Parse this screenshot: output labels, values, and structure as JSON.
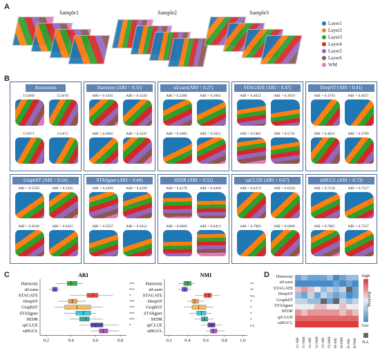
{
  "panel_a": {
    "label": "A",
    "samples": [
      "Sample1",
      "Sample2",
      "Sample3"
    ],
    "legend": [
      {
        "name": "Layer1",
        "color": "#1f77b4"
      },
      {
        "name": "Layer2",
        "color": "#ff7f0e"
      },
      {
        "name": "Layer3",
        "color": "#2ca02c"
      },
      {
        "name": "Layer4",
        "color": "#d62728"
      },
      {
        "name": "Layer5",
        "color": "#9467bd"
      },
      {
        "name": "Layer6",
        "color": "#8c564b"
      },
      {
        "name": "WM",
        "color": "#e377c2"
      }
    ]
  },
  "panel_b": {
    "label": "B",
    "methods": [
      {
        "title": "Annotation",
        "values": [
          "151669",
          "151670",
          "151671",
          "151672"
        ]
      },
      {
        "title": "Harmony (ARI = 0.35)",
        "values": [
          "ARI = 0.3435",
          "ARI = 0.3249",
          "ARI = 0.4005",
          "ARI = 0.3247"
        ]
      },
      {
        "title": "stLearn(ARI = 0.27)",
        "values": [
          "ARI = 0.2280",
          "ARI = 0.3002",
          "ARI = 0.2682",
          "ARI = 0.2651"
        ]
      },
      {
        "title": "STAGATE (ARI = 0.47)",
        "values": [
          "ARI = 0.4022",
          "ARI = 0.3919",
          "ARI = 0.5481",
          "ARI = 0.5732"
        ]
      },
      {
        "title": "DeepST (ARI = 0.41)",
        "values": [
          "ARI = 0.3793",
          "ARI = 0.4037",
          "ARI = 0.4831",
          "ARI = 0.3789"
        ]
      },
      {
        "title": "GraphST (ARI = 0.54)",
        "values": [
          "ARI = 0.5520",
          "ARI = 0.5435",
          "ARI = 0.6338",
          "ARI = 0.4361"
        ]
      },
      {
        "title": "STAligner (ARI = 0.49)",
        "values": [
          "ARI = 0.4289",
          "ARI = 0.4299",
          "ARI = 0.5567",
          "ARI = 0.5614"
        ]
      },
      {
        "title": "SEDR (ARI = 0.52)",
        "values": [
          "ARI = 0.4178",
          "ARI = 0.4309",
          "ARI = 0.6009",
          "ARI = 0.6413"
        ]
      },
      {
        "title": "spCLUE (ARI = 0.67)",
        "values": [
          "ARI = 0.6474",
          "ARI = 0.6326",
          "ARI = 0.7885",
          "ARI = 0.6689"
        ]
      },
      {
        "title": "stHGCL (ARI = 0.73)",
        "values": [
          "ARI = 0.7158",
          "ARI = 0.7357",
          "ARI = 0.7885",
          "ARI = 0.7357"
        ]
      }
    ]
  },
  "chart_data": [
    {
      "type": "box",
      "panel": "C",
      "title": "ARI",
      "categories": [
        "Harmony",
        "stLearn",
        "STAGATE",
        "DeepST",
        "GraphST",
        "STAligner",
        "SEDR",
        "spCLUE",
        "stHGCL"
      ],
      "colors": [
        "#3aaa4a",
        "#5b52d6",
        "#e8453c",
        "#e8a05a",
        "#f0c060",
        "#3ec6d6",
        "#3aa89a",
        "#5d3fa8",
        "#b44fc4"
      ],
      "boxes": [
        {
          "q1": 0.37,
          "median": 0.4,
          "q3": 0.45,
          "min": 0.28,
          "max": 0.5
        },
        {
          "q1": 0.25,
          "median": 0.27,
          "q3": 0.29,
          "min": 0.22,
          "max": 0.31
        },
        {
          "q1": 0.53,
          "median": 0.58,
          "q3": 0.62,
          "min": 0.39,
          "max": 0.74
        },
        {
          "q1": 0.38,
          "median": 0.41,
          "q3": 0.45,
          "min": 0.3,
          "max": 0.52
        },
        {
          "q1": 0.35,
          "median": 0.45,
          "q3": 0.56,
          "min": 0.27,
          "max": 0.66
        },
        {
          "q1": 0.44,
          "median": 0.5,
          "q3": 0.56,
          "min": 0.34,
          "max": 0.6
        },
        {
          "q1": 0.47,
          "median": 0.52,
          "q3": 0.55,
          "min": 0.39,
          "max": 0.66
        },
        {
          "q1": 0.56,
          "median": 0.6,
          "q3": 0.66,
          "min": 0.47,
          "max": 0.79
        },
        {
          "q1": 0.63,
          "median": 0.66,
          "q3": 0.7,
          "min": 0.56,
          "max": 0.79
        }
      ],
      "significance": [
        "***",
        "***",
        "*",
        "***",
        "***",
        "***",
        "***",
        "*",
        ""
      ],
      "xlim": [
        0.15,
        0.85
      ],
      "xticks": [
        "0.2",
        "0.4",
        "0.6",
        "0.8"
      ]
    },
    {
      "type": "box",
      "panel": "C",
      "title": "NMI",
      "categories": [
        "Harmony",
        "stLearn",
        "STAGATE",
        "DeepST",
        "GraphST",
        "STAligner",
        "SEDR",
        "spCLUE",
        "stHGCL"
      ],
      "colors": [
        "#3aaa4a",
        "#5b52d6",
        "#e8453c",
        "#e8a05a",
        "#f0c060",
        "#3ec6d6",
        "#3aa89a",
        "#5d3fa8",
        "#b44fc4"
      ],
      "boxes": [
        {
          "q1": 0.36,
          "median": 0.4,
          "q3": 0.44,
          "min": 0.3,
          "max": 0.48
        },
        {
          "q1": 0.34,
          "median": 0.37,
          "q3": 0.4,
          "min": 0.3,
          "max": 0.44
        },
        {
          "q1": 0.58,
          "median": 0.63,
          "q3": 0.66,
          "min": 0.48,
          "max": 0.75
        },
        {
          "q1": 0.45,
          "median": 0.48,
          "q3": 0.52,
          "min": 0.4,
          "max": 0.58
        },
        {
          "q1": 0.45,
          "median": 0.52,
          "q3": 0.6,
          "min": 0.36,
          "max": 0.68
        },
        {
          "q1": 0.5,
          "median": 0.55,
          "q3": 0.6,
          "min": 0.42,
          "max": 0.66
        },
        {
          "q1": 0.55,
          "median": 0.58,
          "q3": 0.62,
          "min": 0.48,
          "max": 0.68
        },
        {
          "q1": 0.62,
          "median": 0.66,
          "q3": 0.7,
          "min": 0.55,
          "max": 0.78
        },
        {
          "q1": 0.65,
          "median": 0.68,
          "q3": 0.72,
          "min": 0.6,
          "max": 0.8
        }
      ],
      "significance": [
        "**",
        "**",
        "n.s.",
        "*",
        "*",
        "*",
        "*",
        "n.s.",
        ""
      ],
      "xlim": [
        0.15,
        1.05
      ],
      "xticks": [
        "0.2",
        "0.4",
        "0.6",
        "0.8",
        "1.0"
      ]
    },
    {
      "type": "heatmap",
      "panel": "D",
      "rows": [
        "Harmony",
        "stLearn",
        "STAGATE",
        "DeepST",
        "GraphST",
        "STAligner",
        "SEDR",
        "spCLUE",
        "stHGCL"
      ],
      "columns": [
        "S1-ARI",
        "S1-NMI",
        "S2-ARI",
        "S2-NMI",
        "S3-ARI",
        "S3-NMI",
        "M-ARI",
        "M-NMI",
        "B-ARI",
        "B-NMI"
      ],
      "values": [
        [
          2,
          3,
          2,
          2,
          2,
          3,
          1,
          2,
          3,
          3
        ],
        [
          1,
          1,
          1,
          1,
          1,
          1,
          2,
          1,
          2,
          1
        ],
        [
          6,
          7,
          6,
          5,
          3,
          4,
          3,
          4,
          "NA",
          2
        ],
        [
          3,
          2,
          4,
          2,
          4,
          3,
          2,
          3,
          1,
          2
        ],
        [
          4,
          4,
          3,
          3,
          "NA",
          2,
          "NA",
          4,
          3,
          4
        ],
        [
          5,
          5,
          5,
          6,
          6,
          5,
          5,
          6,
          5,
          5
        ],
        [
          7,
          6,
          7,
          7,
          7,
          7,
          7,
          6,
          7,
          6
        ],
        [
          8,
          8,
          8,
          8,
          8,
          8,
          8,
          8,
          8,
          8
        ],
        [
          9,
          9,
          9,
          9,
          9,
          9,
          9,
          9,
          9,
          9
        ]
      ],
      "legend": {
        "high": "high",
        "low": "low",
        "title": "Ranking",
        "na": "NA"
      }
    }
  ]
}
